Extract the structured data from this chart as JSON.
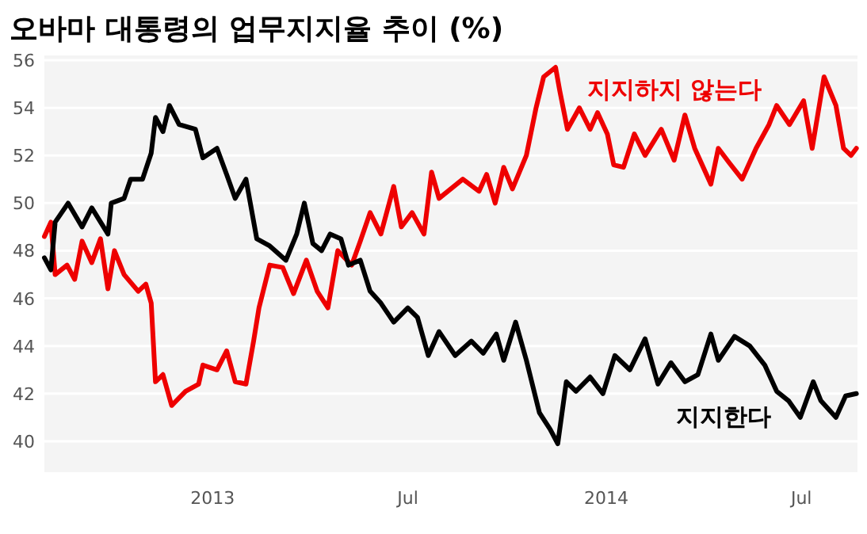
{
  "chart_data": {
    "type": "line",
    "title": "오바마 대통령의 업무지지율 추이 (%)",
    "xlim": [
      "2012-07-29",
      "2014-08-22"
    ],
    "ylim": [
      38.7,
      56.2
    ],
    "xticks": [
      {
        "value": "2013-01-01",
        "label": "2013"
      },
      {
        "value": "2013-07-01",
        "label": "Jul"
      },
      {
        "value": "2014-01-01",
        "label": "2014"
      },
      {
        "value": "2014-07-01",
        "label": "Jul"
      }
    ],
    "yticks": [
      40,
      42,
      44,
      46,
      48,
      50,
      52,
      54,
      56
    ],
    "grid": "y",
    "legend": false,
    "marker": "none",
    "line_style": "solid",
    "series": [
      {
        "name": "지지하지 않는다",
        "color": "#ee0000",
        "x": [
          "2012-07-29",
          "2012-08-04",
          "2012-08-08",
          "2012-08-19",
          "2012-08-26",
          "2012-09-02",
          "2012-09-11",
          "2012-09-19",
          "2012-09-26",
          "2012-10-02",
          "2012-10-11",
          "2012-10-24",
          "2012-10-31",
          "2012-11-05",
          "2012-11-09",
          "2012-11-16",
          "2012-11-24",
          "2012-12-07",
          "2012-12-19",
          "2012-12-23",
          "2013-01-05",
          "2013-01-14",
          "2013-01-22",
          "2013-02-01",
          "2013-02-08",
          "2013-02-13",
          "2013-02-23",
          "2013-03-07",
          "2013-03-17",
          "2013-03-29",
          "2013-04-08",
          "2013-04-18",
          "2013-04-27",
          "2013-05-10",
          "2013-05-18",
          "2013-05-27",
          "2013-06-06",
          "2013-06-18",
          "2013-06-25",
          "2013-07-05",
          "2013-07-16",
          "2013-07-23",
          "2013-07-30",
          "2013-08-21",
          "2013-09-05",
          "2013-09-12",
          "2013-09-20",
          "2013-09-28",
          "2013-10-06",
          "2013-10-19",
          "2013-10-28",
          "2013-11-04",
          "2013-11-15",
          "2013-11-19",
          "2013-11-26",
          "2013-12-07",
          "2013-12-17",
          "2013-12-24",
          "2014-01-02",
          "2014-01-08",
          "2014-01-17",
          "2014-01-27",
          "2014-02-06",
          "2014-02-21",
          "2014-03-05",
          "2014-03-15",
          "2014-03-24",
          "2014-04-08",
          "2014-04-15",
          "2014-04-25",
          "2014-05-07",
          "2014-05-20",
          "2014-06-01",
          "2014-06-08",
          "2014-06-20",
          "2014-07-03",
          "2014-07-11",
          "2014-07-22",
          "2014-08-02",
          "2014-08-09",
          "2014-08-16",
          "2014-08-21"
        ],
        "values": [
          48.6,
          49.2,
          47.0,
          47.4,
          46.8,
          48.4,
          47.5,
          48.5,
          46.4,
          48.0,
          47.0,
          46.3,
          46.6,
          45.8,
          42.5,
          42.8,
          41.5,
          42.1,
          42.4,
          43.2,
          43.0,
          43.8,
          42.5,
          42.4,
          44.2,
          45.6,
          47.4,
          47.3,
          46.2,
          47.6,
          46.3,
          45.6,
          48.0,
          47.4,
          48.4,
          49.6,
          48.7,
          50.7,
          49.0,
          49.6,
          48.7,
          51.3,
          50.2,
          51.0,
          50.5,
          51.2,
          50.0,
          51.5,
          50.6,
          52.0,
          54.0,
          55.3,
          55.7,
          54.7,
          53.1,
          54.0,
          53.1,
          53.8,
          52.9,
          51.6,
          51.5,
          52.9,
          52.0,
          53.1,
          51.8,
          53.7,
          52.3,
          50.8,
          52.3,
          51.7,
          51.0,
          52.3,
          53.3,
          54.1,
          53.3,
          54.3,
          52.3,
          55.3,
          54.1,
          52.3,
          52.0,
          52.3
        ]
      },
      {
        "name": "지지한다",
        "color": "#000000",
        "x": [
          "2012-07-29",
          "2012-08-04",
          "2012-08-08",
          "2012-08-20",
          "2012-09-02",
          "2012-09-11",
          "2012-09-26",
          "2012-09-29",
          "2012-10-11",
          "2012-10-17",
          "2012-10-28",
          "2012-11-05",
          "2012-11-09",
          "2012-11-16",
          "2012-11-22",
          "2012-12-01",
          "2012-12-16",
          "2012-12-23",
          "2013-01-05",
          "2013-01-14",
          "2013-01-22",
          "2013-02-01",
          "2013-02-11",
          "2013-02-23",
          "2013-03-10",
          "2013-03-20",
          "2013-03-27",
          "2013-04-04",
          "2013-04-12",
          "2013-04-20",
          "2013-04-30",
          "2013-05-07",
          "2013-05-18",
          "2013-05-27",
          "2013-06-06",
          "2013-06-18",
          "2013-07-01",
          "2013-07-10",
          "2013-07-20",
          "2013-07-30",
          "2013-08-14",
          "2013-08-29",
          "2013-09-09",
          "2013-09-21",
          "2013-09-28",
          "2013-10-09",
          "2013-10-19",
          "2013-10-31",
          "2013-11-10",
          "2013-11-17",
          "2013-11-25",
          "2013-12-04",
          "2013-12-17",
          "2013-12-29",
          "2014-01-09",
          "2014-01-23",
          "2014-02-06",
          "2014-02-18",
          "2014-03-02",
          "2014-03-15",
          "2014-03-27",
          "2014-04-08",
          "2014-04-15",
          "2014-04-30",
          "2014-05-14",
          "2014-05-28",
          "2014-06-08",
          "2014-06-19",
          "2014-06-30",
          "2014-07-12",
          "2014-07-19",
          "2014-08-02",
          "2014-08-11",
          "2014-08-21"
        ],
        "values": [
          47.7,
          47.2,
          49.2,
          50.0,
          49.0,
          49.8,
          48.7,
          50.0,
          50.2,
          51.0,
          51.0,
          52.1,
          53.6,
          53.0,
          54.1,
          53.3,
          53.1,
          51.9,
          52.3,
          51.2,
          50.2,
          51.0,
          48.5,
          48.2,
          47.6,
          48.7,
          50.0,
          48.3,
          48.0,
          48.7,
          48.5,
          47.4,
          47.6,
          46.3,
          45.8,
          45.0,
          45.6,
          45.2,
          43.6,
          44.6,
          43.6,
          44.2,
          43.7,
          44.5,
          43.4,
          45.0,
          43.4,
          41.2,
          40.5,
          39.9,
          42.5,
          42.1,
          42.7,
          42.0,
          43.6,
          43.0,
          44.3,
          42.4,
          43.3,
          42.5,
          42.8,
          44.5,
          43.4,
          44.4,
          44.0,
          43.2,
          42.1,
          41.7,
          41.0,
          42.5,
          41.7,
          41.0,
          41.9,
          42.0
        ]
      }
    ]
  }
}
